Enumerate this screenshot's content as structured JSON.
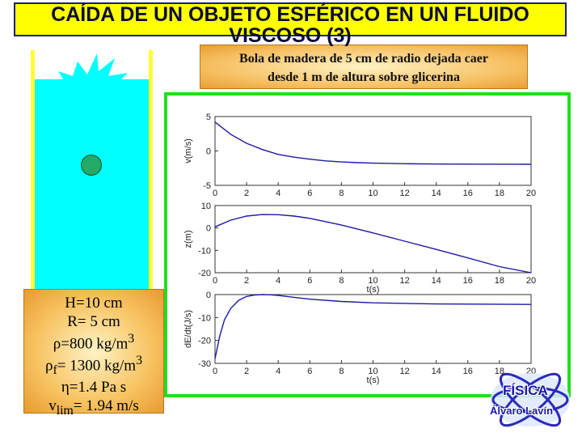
{
  "slide": {
    "title": "CAÍDA DE UN OBJETO ESFÉRICO EN UN FLUIDO VISCOSO (3)",
    "description_line1": "Bola de madera de 5 cm de radio dejada caer",
    "description_line2": "desde 1 m de altura sobre glicerina"
  },
  "params": {
    "H": "H=10 cm",
    "R": "R= 5 cm",
    "rho_sym": "ρ",
    "rho_rest": "=800 kg/m",
    "rho_exp": "3",
    "rhof_sym": "ρ",
    "rhof_sub": "f",
    "rhof_rest": "= 1300 kg/m",
    "rhof_exp": "3",
    "eta_sym": "η",
    "eta_rest": "=1.4 Pa s",
    "vlim_main": "v",
    "vlim_sub": "lim",
    "vlim_rest": "= 1.94 m/s"
  },
  "logo": {
    "line1": "FÍSICA",
    "line2": "Álvaro Lavín"
  },
  "colors": {
    "title_bg": "#ffff00",
    "fluid": "#00ffff",
    "frame": "#22dd22",
    "curve": "#1a1aa8",
    "ball": "#22aa66"
  },
  "chart_data": [
    {
      "type": "line",
      "ylabel": "v(m/s)",
      "xlabel": "",
      "xlim": [
        0,
        20
      ],
      "ylim": [
        -5,
        5
      ],
      "yticks": [
        "5",
        "0",
        "-5"
      ],
      "xticks": [
        "0",
        "2",
        "4",
        "6",
        "8",
        "10",
        "12",
        "14",
        "16",
        "18",
        "20"
      ],
      "x": [
        0,
        1,
        2,
        3,
        4,
        5,
        6,
        7,
        8,
        9,
        10,
        12,
        14,
        16,
        18,
        20
      ],
      "y": [
        4.2,
        2.4,
        1.1,
        0.2,
        -0.5,
        -0.9,
        -1.2,
        -1.45,
        -1.6,
        -1.7,
        -1.78,
        -1.86,
        -1.9,
        -1.92,
        -1.93,
        -1.94
      ]
    },
    {
      "type": "line",
      "ylabel": "z(m)",
      "xlabel": "t(s)",
      "xlim": [
        0,
        20
      ],
      "ylim": [
        -20,
        10
      ],
      "yticks": [
        "10",
        "0",
        "-10",
        "-20"
      ],
      "xticks": [
        "0",
        "2",
        "4",
        "6",
        "8",
        "10",
        "12",
        "14",
        "16",
        "18",
        "20"
      ],
      "x": [
        0,
        1,
        2,
        3,
        4,
        5,
        6,
        8,
        10,
        12,
        14,
        16,
        18,
        20
      ],
      "y": [
        0.5,
        3.5,
        5.3,
        6.0,
        5.9,
        5.3,
        4.3,
        1.3,
        -2.2,
        -5.9,
        -9.6,
        -13.4,
        -17.3,
        -21.0
      ]
    },
    {
      "type": "line",
      "ylabel": "dE/dt(J/s)",
      "xlabel": "t(s)",
      "xlim": [
        0,
        20
      ],
      "ylim": [
        -30,
        0
      ],
      "yticks": [
        "0",
        "-10",
        "-20",
        "-30"
      ],
      "xticks": [
        "0",
        "2",
        "4",
        "6",
        "8",
        "10",
        "12",
        "14",
        "16",
        "18",
        "20"
      ],
      "x": [
        0,
        0.3,
        0.6,
        1,
        1.5,
        2,
        2.5,
        3,
        3.5,
        4,
        5,
        6,
        8,
        10,
        14,
        20
      ],
      "y": [
        -28,
        -18,
        -11,
        -6,
        -2.5,
        -0.8,
        -0.2,
        0,
        -0.1,
        -0.4,
        -1.2,
        -2.0,
        -3.0,
        -3.6,
        -4.1,
        -4.3
      ]
    }
  ]
}
